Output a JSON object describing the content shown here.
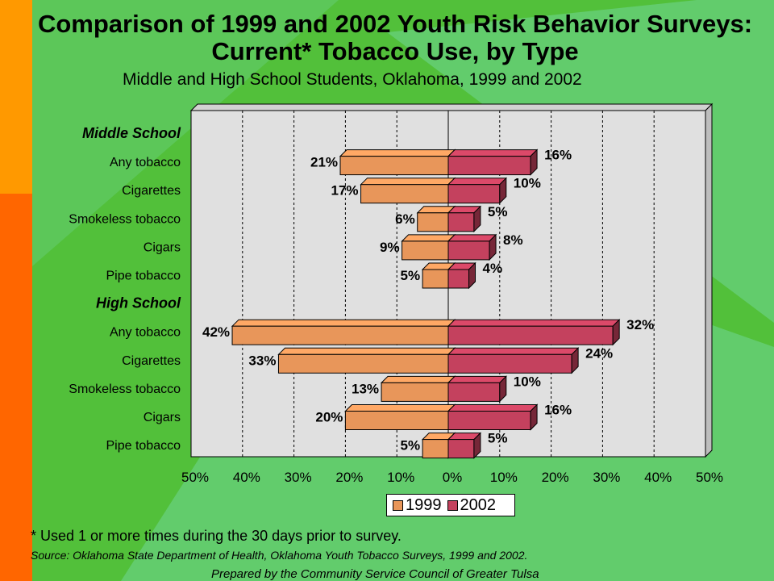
{
  "page": {
    "title_line1": "Comparison of 1999 and 2002 Youth Risk Behavior Surveys:",
    "title_line2": "Current* Tobacco Use, by Type",
    "subtitle": "Middle and High School Students, Oklahoma, 1999 and 2002",
    "footnote": "* Used 1 or more times during the 30 days prior to survey.",
    "source": "Source:  Oklahoma State Department of Health, Oklahoma Youth Tobacco Surveys, 1999 and 2002.",
    "prepared_by": "Prepared by the Community Service Council of Greater Tulsa"
  },
  "colors": {
    "background": "#52c03a",
    "series_1999": "#e8965a",
    "series_2002": "#c4415e",
    "plot_area": "#e0e0e0"
  },
  "chart_data": {
    "type": "bar",
    "orientation": "horizontal-diverging",
    "title": "Comparison of 1999 and 2002 Youth Risk Behavior Surveys: Current* Tobacco Use, by Type",
    "subtitle": "Middle and High School Students, Oklahoma, 1999 and 2002",
    "xlabel": "",
    "ylabel": "",
    "xlim": [
      -50,
      50
    ],
    "x_ticks": [
      "50%",
      "40%",
      "30%",
      "20%",
      "10%",
      "0%",
      "10%",
      "20%",
      "30%",
      "40%",
      "50%"
    ],
    "grid": true,
    "legend_position": "bottom",
    "groups": [
      {
        "label": "Middle School",
        "categories": [
          "Any tobacco",
          "Cigarettes",
          "Smokeless tobacco",
          "Cigars",
          "Pipe tobacco"
        ],
        "series": [
          {
            "name": "1999",
            "values": [
              21,
              17,
              6,
              9,
              5
            ],
            "labels": [
              "21%",
              "17%",
              "6%",
              "9%",
              "5%"
            ]
          },
          {
            "name": "2002",
            "values": [
              16,
              10,
              5,
              8,
              4
            ],
            "labels": [
              "16%",
              "10%",
              "5%",
              "8%",
              "4%"
            ]
          }
        ]
      },
      {
        "label": "High School",
        "categories": [
          "Any tobacco",
          "Cigarettes",
          "Smokeless tobacco",
          "Cigars",
          "Pipe tobacco"
        ],
        "series": [
          {
            "name": "1999",
            "values": [
              42,
              33,
              13,
              20,
              5
            ],
            "labels": [
              "42%",
              "33%",
              "13%",
              "20%",
              "5%"
            ]
          },
          {
            "name": "2002",
            "values": [
              32,
              24,
              10,
              16,
              5
            ],
            "labels": [
              "32%",
              "24%",
              "10%",
              "16%",
              "5%"
            ]
          }
        ]
      }
    ],
    "legend": [
      "1999",
      "2002"
    ]
  }
}
